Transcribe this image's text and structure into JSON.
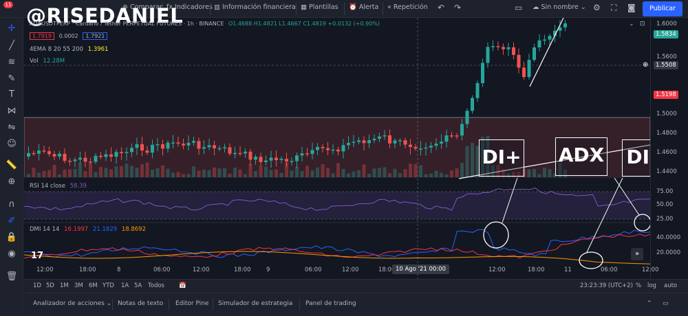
{
  "watermark": "@RISEDANIEL",
  "toolbar": {
    "compare": "Comparar",
    "indicators": "Indicadores",
    "financial_info": "Información financiera",
    "templates": "Plantillas",
    "alert": "Alerta",
    "replay": "Repetición",
    "layout_name": "Sin nombre",
    "publish": "Publicar",
    "notification_count": "11"
  },
  "symbol": {
    "title": "ADAUSDTPERP · Cardano / Tether PERPETUAL FUTURES · 1h · BINANCE",
    "ohlc": "O1.4688  H1.4821  L1.4667  C1.4819  +0.0132 (+0.90%)",
    "bid": "1.7919",
    "spread": "0.0002",
    "ask": "1.7921"
  },
  "ema": {
    "label": "4EMA 8 20 55 200",
    "value": "1.3961"
  },
  "volume": {
    "label": "Vol",
    "value": "12.28M"
  },
  "rsi": {
    "label": "RSI 14 close",
    "value": "58.39"
  },
  "dmi": {
    "label": "DMI 14 14",
    "di_plus": "16.1997",
    "di_minus": "21.1829",
    "adx": "18.8692"
  },
  "annotations": {
    "di_plus": "DI+",
    "adx": "ADX",
    "di_minus": "DI-"
  },
  "price_axis": {
    "labels": [
      "1.6000",
      "1.5600",
      "1.5000",
      "1.4800",
      "1.4600",
      "1.4400"
    ],
    "current_price": "1.5834",
    "crosshair_price": "1.5508",
    "red_tag": "1.5198"
  },
  "rsi_axis": [
    "75.00",
    "50.00",
    "25.00"
  ],
  "dmi_axis": [
    "40.0000",
    "20.0000"
  ],
  "time_axis": {
    "labels": [
      "12:00",
      "18:00",
      "8",
      "06:00",
      "12:00",
      "18:00",
      "9",
      "06:00",
      "12:00",
      "18:00",
      "12:00",
      "18:00",
      "11",
      "06:00",
      "12:00"
    ],
    "highlight": "10 Ago '21   00:00"
  },
  "ranges": [
    "1D",
    "5D",
    "1M",
    "3M",
    "6M",
    "YTD",
    "1A",
    "5A",
    "Todos"
  ],
  "clock": "23:23:39 (UTC+2)",
  "scale_options": [
    "%",
    "log",
    "auto"
  ],
  "bottom_tabs": [
    "Analizador de acciones",
    "Notas de texto",
    "Editor Pine",
    "Simulador de estrategia",
    "Panel de trading"
  ],
  "colors": {
    "up": "#26a69a",
    "down": "#ef5350",
    "accent": "#2962ff",
    "di_plus": "#2962ff",
    "di_minus": "#f23645",
    "adx": "#ff9800",
    "rsi": "#7e57c2"
  }
}
